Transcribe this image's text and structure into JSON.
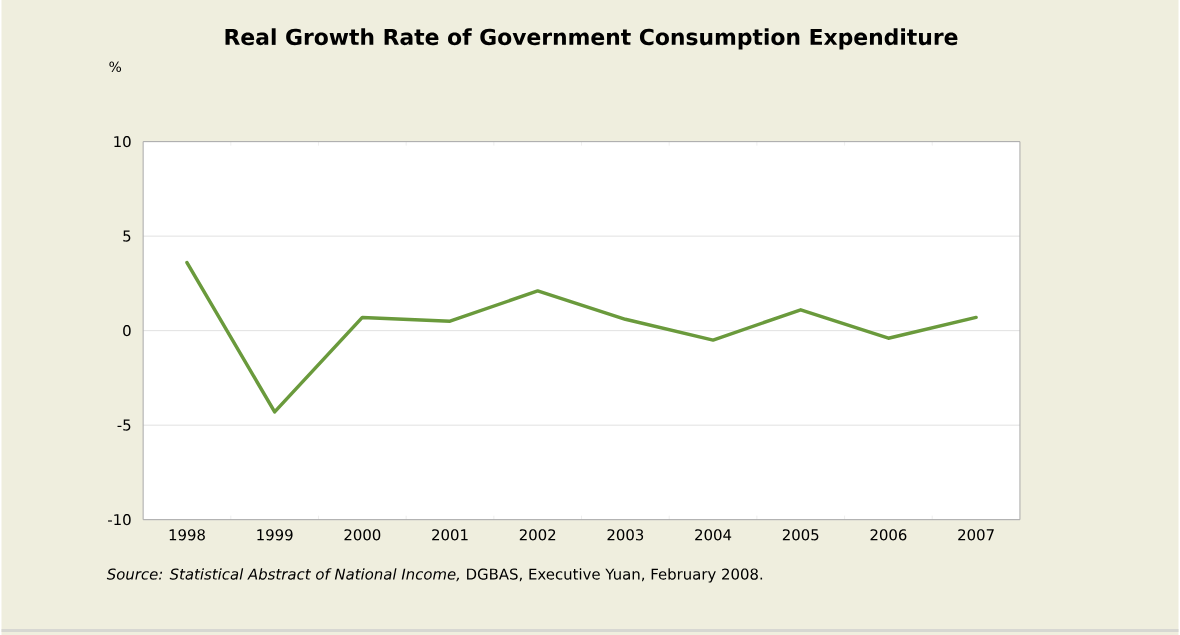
{
  "chart_data": {
    "type": "line",
    "title": "Real Growth Rate of Government Consumption Expenditure",
    "ylabel": "%",
    "categories": [
      "1998",
      "1999",
      "2000",
      "2001",
      "2002",
      "2003",
      "2004",
      "2005",
      "2006",
      "2007"
    ],
    "series": [
      {
        "color": "#6a9a3c",
        "values": [
          3.6,
          -4.3,
          0.7,
          0.5,
          2.1,
          0.6,
          -0.5,
          1.1,
          -0.4,
          0.7
        ]
      }
    ],
    "ylim": [
      -10,
      10
    ],
    "yticks": [
      -10,
      -5,
      0,
      5,
      10
    ],
    "grid": "y",
    "legend": false,
    "marker": "none",
    "line_style": "solid",
    "annotations": [
      "*Source: Statistical Abstract of National Income,* DGBAS, Executive Yuan, February 2008."
    ]
  }
}
